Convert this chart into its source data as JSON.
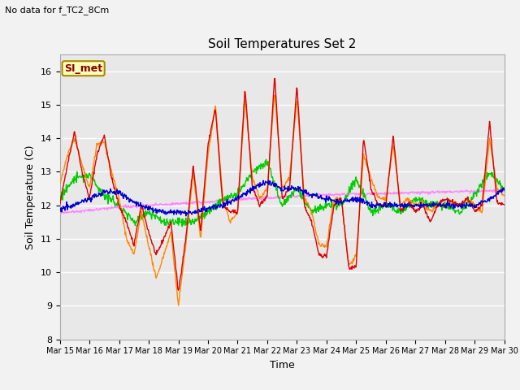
{
  "title": "Soil Temperatures Set 2",
  "subtitle": "No data for f_TC2_8Cm",
  "xlabel": "Time",
  "ylabel": "Soil Temperature (C)",
  "ylim": [
    8.0,
    16.5
  ],
  "yticks": [
    8.0,
    9.0,
    10.0,
    11.0,
    12.0,
    13.0,
    14.0,
    15.0,
    16.0
  ],
  "fig_color": "#f2f2f2",
  "plot_bg_color": "#e8e8e8",
  "series_colors": {
    "TC2_2Cm": "#dd0000",
    "TC2_4Cm": "#ff8800",
    "TC2_16Cm": "#00cc00",
    "TC2_32Cm": "#0000cc",
    "TC2_50Cm": "#ff88ff"
  },
  "legend_label": "SI_met",
  "x_tick_labels": [
    "Mar 15",
    "Mar 16",
    "Mar 17",
    "Mar 18",
    "Mar 19",
    "Mar 20",
    "Mar 21",
    "Mar 22",
    "Mar 23",
    "Mar 24",
    "Mar 25",
    "Mar 26",
    "Mar 27",
    "Mar 28",
    "Mar 29",
    "Mar 30"
  ],
  "n_points": 960
}
